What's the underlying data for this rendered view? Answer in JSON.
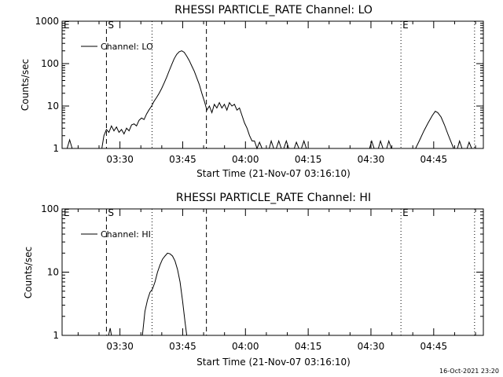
{
  "colors": {
    "background": "#ffffff",
    "foreground": "#000000"
  },
  "footer": {
    "timestamp": "16-Oct-2021 23:20"
  },
  "chart_data": [
    {
      "type": "line",
      "title": "RHESSI PARTICLE_RATE Channel: LO",
      "xlabel": "Start Time (21-Nov-07 03:16:10)",
      "ylabel": "Counts/sec",
      "yscale": "log",
      "ylim": [
        1,
        1000
      ],
      "xlim": [
        0,
        100.7
      ],
      "x_ticks": [
        {
          "value": 13.83,
          "label": "03:30"
        },
        {
          "value": 28.83,
          "label": "03:45"
        },
        {
          "value": 43.83,
          "label": "04:00"
        },
        {
          "value": 58.83,
          "label": "04:15"
        },
        {
          "value": 73.83,
          "label": "04:30"
        },
        {
          "value": 88.83,
          "label": "04:45"
        }
      ],
      "y_ticks": [
        {
          "value": 1,
          "label": "1"
        },
        {
          "value": 10,
          "label": "10"
        },
        {
          "value": 100,
          "label": "100"
        },
        {
          "value": 1000,
          "label": "1000"
        }
      ],
      "legend": {
        "label": "Channel: LO",
        "position": "top-left"
      },
      "markers": [
        {
          "x": 10.6,
          "style": "dashed",
          "label": "S"
        },
        {
          "x": 21.5,
          "style": "dotted",
          "label": ""
        },
        {
          "x": 34.5,
          "style": "dashed",
          "label": ""
        },
        {
          "x": 81.0,
          "style": "dotted",
          "label": "E"
        },
        {
          "x": 98.6,
          "style": "dotted",
          "label": ""
        }
      ],
      "corner_labels": [
        "E"
      ],
      "series": [
        {
          "name": "Channel: LO",
          "points": [
            [
              1.2,
              1
            ],
            [
              1.8,
              1.6
            ],
            [
              2.4,
              1
            ],
            [
              9.5,
              1
            ],
            [
              10.0,
              2
            ],
            [
              10.6,
              2.8
            ],
            [
              11.2,
              2.4
            ],
            [
              11.8,
              3.4
            ],
            [
              12.4,
              2.6
            ],
            [
              13.0,
              3.2
            ],
            [
              13.6,
              2.4
            ],
            [
              14.2,
              2.8
            ],
            [
              14.8,
              2.2
            ],
            [
              15.4,
              3.0
            ],
            [
              16.0,
              2.6
            ],
            [
              16.6,
              3.6
            ],
            [
              17.2,
              3.8
            ],
            [
              17.8,
              3.4
            ],
            [
              18.4,
              4.6
            ],
            [
              19.0,
              5.2
            ],
            [
              19.6,
              4.8
            ],
            [
              20.2,
              6.5
            ],
            [
              20.8,
              8.2
            ],
            [
              21.4,
              10
            ],
            [
              22.0,
              13
            ],
            [
              22.6,
              16
            ],
            [
              23.2,
              20
            ],
            [
              23.8,
              26
            ],
            [
              24.4,
              35
            ],
            [
              25.0,
              48
            ],
            [
              25.6,
              68
            ],
            [
              26.2,
              95
            ],
            [
              26.8,
              130
            ],
            [
              27.4,
              165
            ],
            [
              28.0,
              190
            ],
            [
              28.6,
              200
            ],
            [
              29.2,
              185
            ],
            [
              29.8,
              150
            ],
            [
              30.4,
              118
            ],
            [
              31.0,
              88
            ],
            [
              31.6,
              66
            ],
            [
              32.2,
              46
            ],
            [
              32.8,
              32
            ],
            [
              33.4,
              20
            ],
            [
              34.0,
              13
            ],
            [
              34.6,
              8
            ],
            [
              35.2,
              10
            ],
            [
              35.8,
              7
            ],
            [
              36.4,
              11
            ],
            [
              37.0,
              9
            ],
            [
              37.6,
              12
            ],
            [
              38.2,
              9
            ],
            [
              38.8,
              11
            ],
            [
              39.4,
              8
            ],
            [
              40.0,
              12
            ],
            [
              40.6,
              10
            ],
            [
              41.2,
              11
            ],
            [
              41.8,
              8
            ],
            [
              42.4,
              9
            ],
            [
              43.0,
              6
            ],
            [
              43.6,
              4
            ],
            [
              44.2,
              3
            ],
            [
              44.8,
              2
            ],
            [
              45.4,
              1.5
            ],
            [
              46.0,
              1.5
            ],
            [
              46.6,
              1
            ],
            [
              47.2,
              1.4
            ],
            [
              47.8,
              1
            ],
            [
              49.5,
              1
            ],
            [
              50.0,
              1.5
            ],
            [
              50.6,
              1
            ],
            [
              51.2,
              1
            ],
            [
              51.8,
              1.5
            ],
            [
              52.4,
              1
            ],
            [
              53.0,
              1
            ],
            [
              53.6,
              1.5
            ],
            [
              54.2,
              1
            ],
            [
              55.5,
              1
            ],
            [
              56.0,
              1.4
            ],
            [
              56.6,
              1
            ],
            [
              57.2,
              1
            ],
            [
              57.8,
              1.5
            ],
            [
              58.4,
              1
            ],
            [
              73.5,
              1
            ],
            [
              74.0,
              1.5
            ],
            [
              74.6,
              1
            ],
            [
              75.6,
              1
            ],
            [
              76.1,
              1.5
            ],
            [
              76.7,
              1
            ],
            [
              77.6,
              1
            ],
            [
              78.1,
              1.5
            ],
            [
              78.7,
              1
            ],
            [
              84.5,
              1
            ],
            [
              85.5,
              1.6
            ],
            [
              86.5,
              2.6
            ],
            [
              87.5,
              4
            ],
            [
              88.5,
              6
            ],
            [
              89.2,
              7.5
            ],
            [
              89.8,
              7
            ],
            [
              90.6,
              5.5
            ],
            [
              91.4,
              3.6
            ],
            [
              92.2,
              2.2
            ],
            [
              93.0,
              1.4
            ],
            [
              93.6,
              1
            ],
            [
              94.5,
              1
            ],
            [
              95.0,
              1.5
            ],
            [
              95.6,
              1
            ],
            [
              96.8,
              1
            ],
            [
              97.3,
              1.4
            ],
            [
              97.9,
              1
            ]
          ]
        }
      ]
    },
    {
      "type": "line",
      "title": "RHESSI PARTICLE_RATE Channel: HI",
      "xlabel": "Start Time (21-Nov-07 03:16:10)",
      "ylabel": "Counts/sec",
      "yscale": "log",
      "ylim": [
        1,
        100
      ],
      "xlim": [
        0,
        100.7
      ],
      "x_ticks": [
        {
          "value": 13.83,
          "label": "03:30"
        },
        {
          "value": 28.83,
          "label": "03:45"
        },
        {
          "value": 43.83,
          "label": "04:00"
        },
        {
          "value": 58.83,
          "label": "04:15"
        },
        {
          "value": 73.83,
          "label": "04:30"
        },
        {
          "value": 88.83,
          "label": "04:45"
        }
      ],
      "y_ticks": [
        {
          "value": 1,
          "label": "1"
        },
        {
          "value": 10,
          "label": "10"
        },
        {
          "value": 100,
          "label": "100"
        }
      ],
      "legend": {
        "label": "Channel: HI",
        "position": "top-left"
      },
      "markers": [
        {
          "x": 10.6,
          "style": "dashed",
          "label": "S"
        },
        {
          "x": 21.5,
          "style": "dotted",
          "label": ""
        },
        {
          "x": 34.5,
          "style": "dashed",
          "label": ""
        },
        {
          "x": 81.0,
          "style": "dotted",
          "label": "E"
        },
        {
          "x": 98.6,
          "style": "dotted",
          "label": ""
        }
      ],
      "corner_labels": [
        "E"
      ],
      "series": [
        {
          "name": "Channel: HI",
          "points": [
            [
              11.1,
              1
            ],
            [
              11.5,
              1.3
            ],
            [
              11.8,
              1
            ],
            [
              19.2,
              1
            ],
            [
              19.8,
              2.4
            ],
            [
              20.4,
              3.6
            ],
            [
              21.0,
              4.8
            ],
            [
              21.6,
              5.4
            ],
            [
              22.2,
              7
            ],
            [
              22.8,
              10
            ],
            [
              23.4,
              13
            ],
            [
              24.0,
              16
            ],
            [
              24.6,
              18
            ],
            [
              25.2,
              20
            ],
            [
              25.8,
              19.5
            ],
            [
              26.4,
              18
            ],
            [
              27.0,
              15
            ],
            [
              27.6,
              11
            ],
            [
              28.2,
              7
            ],
            [
              28.8,
              3.5
            ],
            [
              29.4,
              1.6
            ],
            [
              29.8,
              1
            ]
          ]
        }
      ]
    }
  ]
}
